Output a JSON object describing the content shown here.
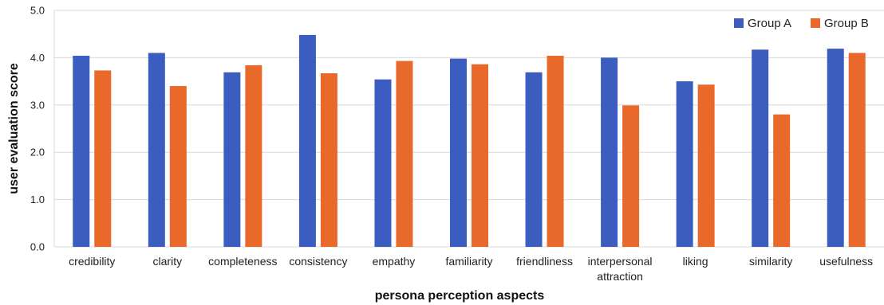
{
  "chart_data": {
    "type": "bar",
    "title": "",
    "xlabel": "persona perception aspects",
    "ylabel": "user evaluation score",
    "ylim": [
      0,
      5
    ],
    "yticks": [
      0,
      1,
      2,
      3,
      4,
      5
    ],
    "ytick_labels": [
      "0.0",
      "1.0",
      "2.0",
      "3.0",
      "4.0",
      "5.0"
    ],
    "grid": true,
    "legend_position": "top-right",
    "categories": [
      "credibility",
      "clarity",
      "completeness",
      "consistency",
      "empathy",
      "familiarity",
      "friendliness",
      "interpersonal\nattraction",
      "liking",
      "similarity",
      "usefulness"
    ],
    "series": [
      {
        "name": "Group A",
        "color": "#3A5DBF",
        "values": [
          4.04,
          4.1,
          3.69,
          4.48,
          3.54,
          3.98,
          3.69,
          4.0,
          3.5,
          4.17,
          4.19
        ]
      },
      {
        "name": "Group B",
        "color": "#E8692A",
        "values": [
          3.73,
          3.4,
          3.84,
          3.67,
          3.93,
          3.86,
          4.04,
          2.99,
          3.43,
          2.8,
          4.1
        ]
      }
    ]
  }
}
